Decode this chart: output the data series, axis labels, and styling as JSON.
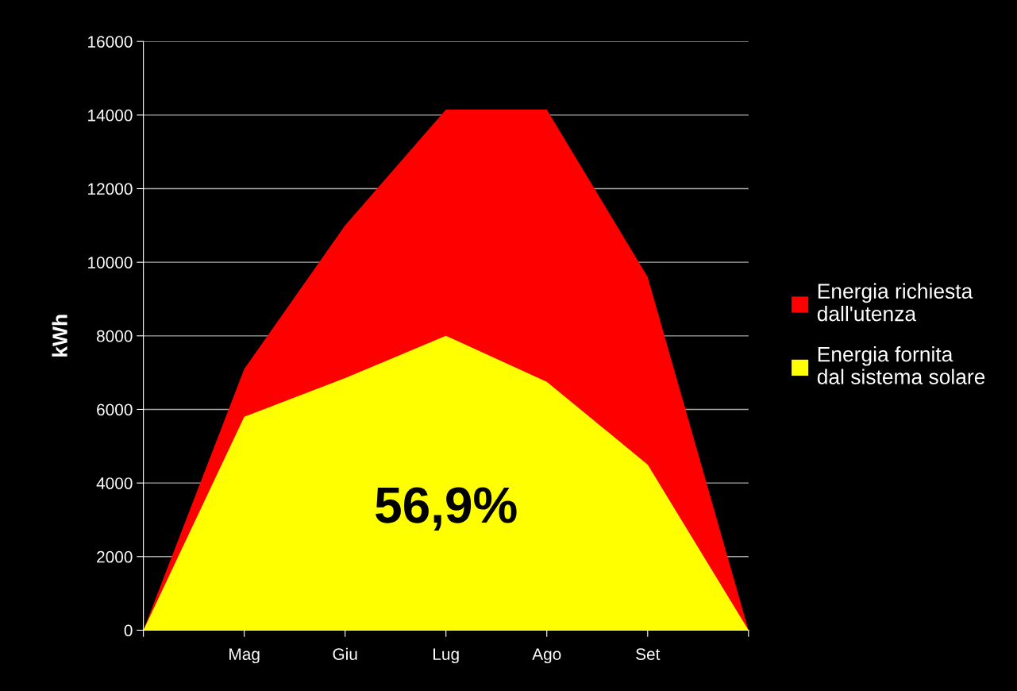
{
  "chart_data": {
    "type": "area",
    "ylabel": "kWh",
    "categories": [
      null,
      "Mag",
      "Giu",
      "Lug",
      "Ago",
      "Set",
      null
    ],
    "series": [
      {
        "name": "Energia richiesta dall'utenza",
        "color": "#ff0000",
        "values": [
          0,
          7100,
          11000,
          14150,
          14150,
          9600,
          0
        ]
      },
      {
        "name": "Energia fornita dal sistema solare",
        "color": "#ffff00",
        "values": [
          0,
          5800,
          6850,
          8000,
          6750,
          4500,
          0
        ]
      }
    ],
    "ylim": [
      0,
      16000
    ],
    "yticks": [
      0,
      2000,
      4000,
      6000,
      8000,
      10000,
      12000,
      14000,
      16000
    ],
    "grid": "y",
    "legend": "right",
    "annotations": [
      "56,9%"
    ]
  }
}
